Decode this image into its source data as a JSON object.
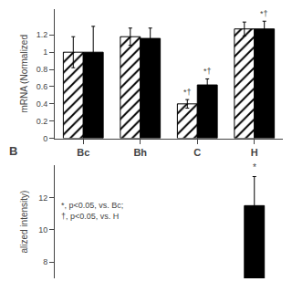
{
  "chart_data": [
    {
      "type": "bar",
      "categories": [
        "Bc",
        "Bh",
        "C",
        "H"
      ],
      "ylabel": "mRNA (Normalized",
      "ylim": [
        0,
        1.5
      ],
      "yticks": [
        0,
        0.2,
        0.4,
        0.6,
        0.8,
        1,
        1.2
      ],
      "grid": false,
      "series": [
        {
          "color": "white",
          "marker": "hatched",
          "values": [
            1.0,
            1.18,
            0.4,
            1.27
          ],
          "errors": [
            0.18,
            0.1,
            0.05,
            0.08
          ]
        },
        {
          "color": "black",
          "values": [
            1.0,
            1.16,
            0.62,
            1.27
          ],
          "errors": [
            0.3,
            0.12,
            0.07,
            0.09
          ]
        }
      ],
      "annotations": [
        {
          "index": 2,
          "series": 0,
          "text": "*†"
        },
        {
          "index": 2,
          "series": 1,
          "text": "*†"
        },
        {
          "index": 3,
          "series": 1,
          "text": "*†"
        }
      ]
    },
    {
      "type": "bar",
      "title": "B",
      "categories": [
        null,
        null,
        null,
        null
      ],
      "values": [
        null,
        null,
        null,
        11.5
      ],
      "errors": [
        null,
        null,
        null,
        1.8
      ],
      "color": "black",
      "ylabel": "alized intensity)",
      "ylim": [
        7,
        14
      ],
      "yticks": [
        8,
        10,
        12
      ],
      "grid": false,
      "tick_labels": "y",
      "annotations": [
        {
          "index": 3,
          "text": "*"
        },
        {
          "text": "*, p<0.05, vs. Bc;\n†, p<0.05, vs. H"
        }
      ]
    }
  ]
}
